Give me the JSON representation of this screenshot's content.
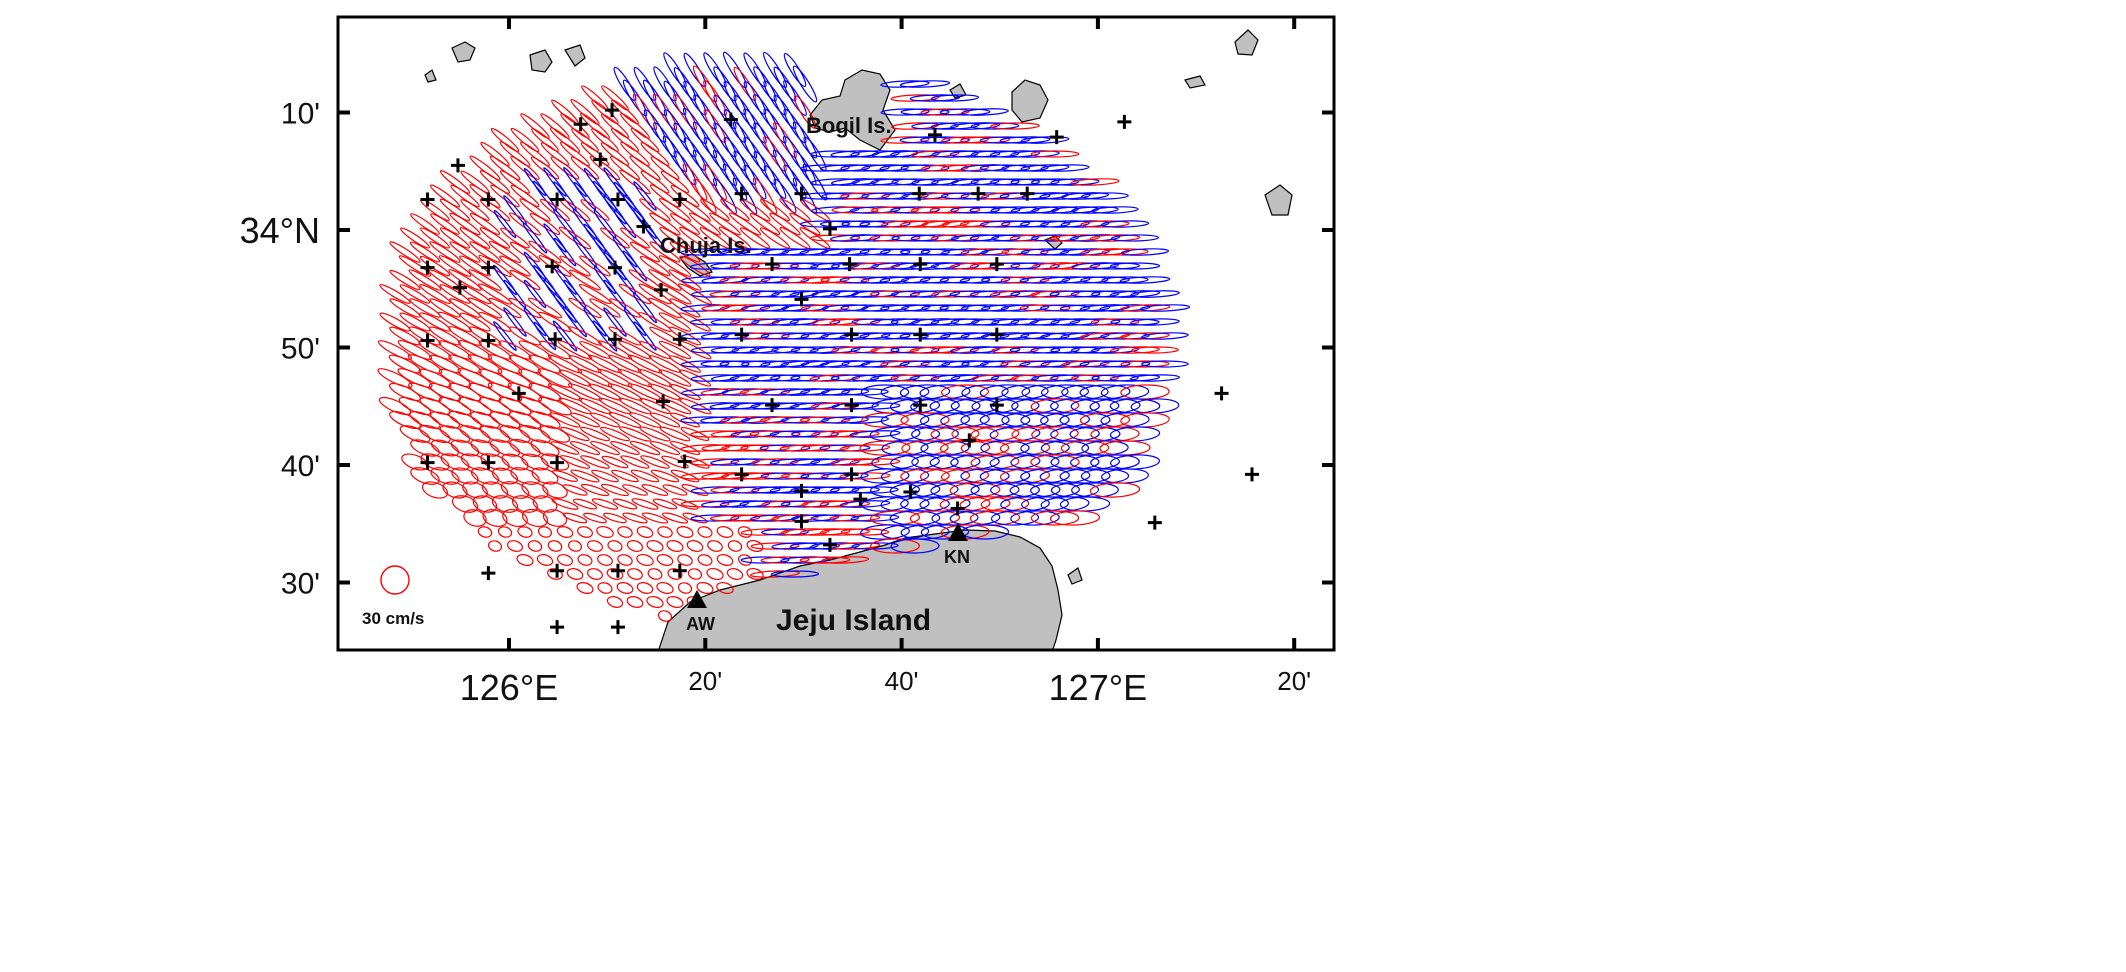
{
  "map": {
    "y_ticks": [
      {
        "label": "10'",
        "lat_min": 10
      },
      {
        "label": "34°N",
        "lat_min": 0
      },
      {
        "label": "50'",
        "lat_min": -10
      },
      {
        "label": "40'",
        "lat_min": -20
      },
      {
        "label": "30'",
        "lat_min": -30
      }
    ],
    "x_ticks": [
      {
        "label": "126°E",
        "lon_min": 0
      },
      {
        "label": "20'",
        "lon_min": 20
      },
      {
        "label": "40'",
        "lon_min": 40
      },
      {
        "label": "127°E",
        "lon_min": 60
      },
      {
        "label": "20'",
        "lon_min": 80
      }
    ],
    "labels": {
      "bogil": "Bogil Is.",
      "chuja": "Chuja Is.",
      "jeju": "Jeju Island",
      "aw": "AW",
      "kn": "KN",
      "scale": "30 cm/s"
    },
    "colors": {
      "red": "#ff0000",
      "blue": "#0000ff",
      "land": "#c0c0c0"
    },
    "stations": [
      [
        -8.3,
        2.6
      ],
      [
        -5.2,
        5.5
      ],
      [
        -2.1,
        2.6
      ],
      [
        4.9,
        2.6
      ],
      [
        7.3,
        9.0
      ],
      [
        9.3,
        6.0
      ],
      [
        10.5,
        10.2
      ],
      [
        11.1,
        2.6
      ],
      [
        13.7,
        0.3
      ],
      [
        17.4,
        2.6
      ],
      [
        22.6,
        9.4
      ],
      [
        23.7,
        3.1
      ],
      [
        29.8,
        3.1
      ],
      [
        32.7,
        0.1
      ],
      [
        43.4,
        8.1
      ],
      [
        41.8,
        3.1
      ],
      [
        47.8,
        3.1
      ],
      [
        52.8,
        3.1
      ],
      [
        55.8,
        7.9
      ],
      [
        62.7,
        9.2
      ],
      [
        -8.3,
        -3.2
      ],
      [
        -5.0,
        -4.9
      ],
      [
        -2.1,
        -3.2
      ],
      [
        4.4,
        -3.1
      ],
      [
        10.8,
        -3.2
      ],
      [
        15.5,
        -5.1
      ],
      [
        26.8,
        -2.9
      ],
      [
        34.7,
        -2.9
      ],
      [
        41.9,
        -2.9
      ],
      [
        49.7,
        -2.9
      ],
      [
        -8.3,
        -9.4
      ],
      [
        -2.1,
        -9.4
      ],
      [
        4.7,
        -9.3
      ],
      [
        10.8,
        -9.3
      ],
      [
        17.4,
        -9.3
      ],
      [
        23.7,
        -8.9
      ],
      [
        29.8,
        -5.9
      ],
      [
        34.9,
        -8.9
      ],
      [
        41.9,
        -8.9
      ],
      [
        49.7,
        -8.9
      ],
      [
        1.0,
        -13.9
      ],
      [
        15.7,
        -14.6
      ],
      [
        26.8,
        -14.9
      ],
      [
        34.9,
        -14.9
      ],
      [
        41.9,
        -14.9
      ],
      [
        49.7,
        -14.9
      ],
      [
        72.6,
        -13.9
      ],
      [
        46.9,
        -17.9
      ],
      [
        -8.3,
        -19.8
      ],
      [
        -2.1,
        -19.8
      ],
      [
        4.9,
        -19.8
      ],
      [
        17.9,
        -19.7
      ],
      [
        23.7,
        -20.8
      ],
      [
        29.8,
        -22.2
      ],
      [
        34.9,
        -20.8
      ],
      [
        35.8,
        -22.9
      ],
      [
        40.9,
        -22.3
      ],
      [
        45.7,
        -23.7
      ],
      [
        75.7,
        -20.8
      ],
      [
        65.8,
        -24.9
      ],
      [
        29.8,
        -24.8
      ],
      [
        32.7,
        -26.8
      ],
      [
        -2.1,
        -29.2
      ],
      [
        4.9,
        -29.0
      ],
      [
        11.1,
        -29.0
      ],
      [
        17.4,
        -29.0
      ],
      [
        4.9,
        -33.8
      ],
      [
        11.1,
        -33.8
      ]
    ]
  }
}
